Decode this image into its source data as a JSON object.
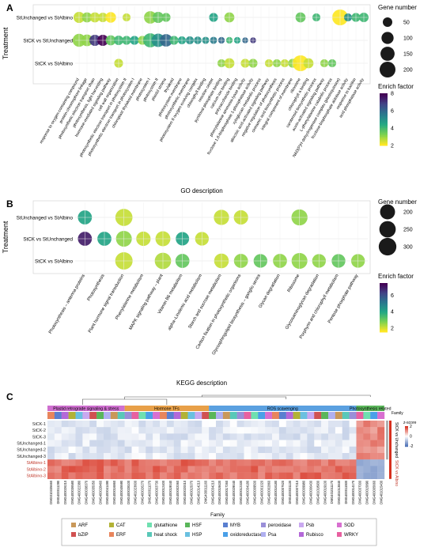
{
  "panels": {
    "A": {
      "label": "A",
      "ylabel": "Treatment",
      "xlabel": "GO description",
      "legend_size_title": "Gene number",
      "legend_color_title": "Enrich factor"
    },
    "B": {
      "label": "B",
      "ylabel": "Treatment",
      "xlabel": "KEGG description",
      "legend_size_title": "Gene number",
      "legend_color_title": "Enrich factor"
    },
    "C": {
      "label": "C",
      "family_label": "Family",
      "zscore_label": "z-score",
      "legend_title": "Family"
    }
  },
  "chart_data": [
    {
      "type": "scatter",
      "panel": "A",
      "title": "",
      "xlabel": "GO description",
      "ylabel": "Treatment",
      "rows": [
        "StUnchanged vs StAlbino",
        "StCK vs StUnchanged",
        "StCK vs StAlbino"
      ],
      "categories": [
        "response to oxygen-containing compound",
        "protein-chromophore linkage",
        "photosynthetic electron transport chain",
        "photosynthesis, light harvesting",
        "hormone-mediated signaling pathway",
        "cell wall organization",
        "photosynthetic electron transport in photosystem II",
        "photosynthetic electron transport in photosystem I",
        "chloroplast thylakoid membrane",
        "photosystem I",
        "photosystem II",
        "plastid stroma",
        "thylakoid",
        "photosystem membrane",
        "photosynthetic membrane",
        "photosystem II oxygen evolving complex",
        "chlorophyll binding",
        "reaction center",
        "pyridoxal phosphate binding",
        "calcium ion binding",
        "polysaccharide binding",
        "phenylalanine ammonia-lyase activity",
        "fructose 1,6-bisphosphate 1-phosphatase activity",
        "xyloglucan metabolic process",
        "abscisic acid-activated signaling pathway",
        "negative regulation of photosynthesis",
        "cinnamic acid biosynthetic process",
        "integral component of membrane",
        "ribosome",
        "chlorophyll a binding",
        "carotenoid biosynthetic process",
        "auxin-activated signaling pathway",
        "L-phenylalanine catabolic process",
        "NAD(P)H dehydrogenase complex (plastoquinone)",
        "fructose-bisphosphate aldolase activity",
        "response to karrikin",
        "acid phosphatase activity"
      ],
      "series": [
        {
          "name": "StUnchanged vs StAlbino",
          "points": [
            {
              "x": 1,
              "gene_number": 80,
              "enrich_factor": 2.5
            },
            {
              "x": 2,
              "gene_number": 60,
              "enrich_factor": 3
            },
            {
              "x": 3,
              "gene_number": 60,
              "enrich_factor": 2.5
            },
            {
              "x": 4,
              "gene_number": 50,
              "enrich_factor": 2.5
            },
            {
              "x": 5,
              "gene_number": 70,
              "enrich_factor": 2
            },
            {
              "x": 7,
              "gene_number": 30,
              "enrich_factor": 2.5
            },
            {
              "x": 10,
              "gene_number": 110,
              "enrich_factor": 3
            },
            {
              "x": 11,
              "gene_number": 80,
              "enrich_factor": 3.5
            },
            {
              "x": 12,
              "gene_number": 40,
              "enrich_factor": 3.5
            },
            {
              "x": 18,
              "gene_number": 40,
              "enrich_factor": 4.5
            },
            {
              "x": 20,
              "gene_number": 60,
              "enrich_factor": 3
            },
            {
              "x": 29,
              "gene_number": 60,
              "enrich_factor": 3.5
            },
            {
              "x": 31,
              "gene_number": 30,
              "enrich_factor": 4
            },
            {
              "x": 34,
              "gene_number": 200,
              "enrich_factor": 2
            },
            {
              "x": 35,
              "gene_number": 30,
              "enrich_factor": 5
            },
            {
              "x": 36,
              "gene_number": 40,
              "enrich_factor": 4
            },
            {
              "x": 37,
              "gene_number": 50,
              "enrich_factor": 4
            }
          ]
        },
        {
          "name": "StCK vs StUnchanged",
          "points": [
            {
              "x": 1,
              "gene_number": 120,
              "enrich_factor": 3
            },
            {
              "x": 2,
              "gene_number": 90,
              "enrich_factor": 3
            },
            {
              "x": 3,
              "gene_number": 80,
              "enrich_factor": 7
            },
            {
              "x": 4,
              "gene_number": 80,
              "enrich_factor": 8
            },
            {
              "x": 5,
              "gene_number": 60,
              "enrich_factor": 3.5
            },
            {
              "x": 6,
              "gene_number": 50,
              "enrich_factor": 4
            },
            {
              "x": 7,
              "gene_number": 40,
              "enrich_factor": 4
            },
            {
              "x": 8,
              "gene_number": 40,
              "enrich_factor": 4.5
            },
            {
              "x": 9,
              "gene_number": 40,
              "enrich_factor": 3
            },
            {
              "x": 10,
              "gene_number": 150,
              "enrich_factor": 4
            },
            {
              "x": 11,
              "gene_number": 130,
              "enrich_factor": 5
            },
            {
              "x": 12,
              "gene_number": 110,
              "enrich_factor": 6
            },
            {
              "x": 13,
              "gene_number": 40,
              "enrich_factor": 4
            },
            {
              "x": 14,
              "gene_number": 30,
              "enrich_factor": 4.5
            },
            {
              "x": 15,
              "gene_number": 30,
              "enrich_factor": 5
            },
            {
              "x": 16,
              "gene_number": 25,
              "enrich_factor": 5
            },
            {
              "x": 17,
              "gene_number": 20,
              "enrich_factor": 5
            },
            {
              "x": 18,
              "gene_number": 20,
              "enrich_factor": 5.5
            },
            {
              "x": 19,
              "gene_number": 15,
              "enrich_factor": 6
            },
            {
              "x": 20,
              "gene_number": 15,
              "enrich_factor": 4
            },
            {
              "x": 21,
              "gene_number": 15,
              "enrich_factor": 4.5
            },
            {
              "x": 22,
              "gene_number": 10,
              "enrich_factor": 6
            },
            {
              "x": 23,
              "gene_number": 10,
              "enrich_factor": 7
            }
          ]
        },
        {
          "name": "StCK vs StAlbino",
          "points": [
            {
              "x": 6,
              "gene_number": 40,
              "enrich_factor": 2.5
            },
            {
              "x": 19,
              "gene_number": 30,
              "enrich_factor": 3
            },
            {
              "x": 20,
              "gene_number": 60,
              "enrich_factor": 2.5
            },
            {
              "x": 22,
              "gene_number": 40,
              "enrich_factor": 2.5
            },
            {
              "x": 23,
              "gene_number": 40,
              "enrich_factor": 3
            },
            {
              "x": 25,
              "gene_number": 30,
              "enrich_factor": 2.5
            },
            {
              "x": 26,
              "gene_number": 30,
              "enrich_factor": 3
            },
            {
              "x": 27,
              "gene_number": 30,
              "enrich_factor": 2.5
            },
            {
              "x": 28,
              "gene_number": 40,
              "enrich_factor": 3
            },
            {
              "x": 29,
              "gene_number": 200,
              "enrich_factor": 2
            },
            {
              "x": 30,
              "gene_number": 60,
              "enrich_factor": 2.5
            },
            {
              "x": 32,
              "gene_number": 30,
              "enrich_factor": 3
            },
            {
              "x": 33,
              "gene_number": 30,
              "enrich_factor": 3.5
            }
          ]
        }
      ],
      "size_legend": [
        50,
        100,
        150,
        200
      ],
      "color_legend": {
        "min": 2,
        "max": 8,
        "ticks": [
          8,
          6,
          4,
          2
        ]
      }
    },
    {
      "type": "scatter",
      "panel": "B",
      "title": "",
      "xlabel": "KEGG description",
      "ylabel": "Treatment",
      "rows": [
        "StUnchanged vs StAlbino",
        "StCK vs StUnchanged",
        "StCK vs StAlbino"
      ],
      "categories": [
        "Photosynthesis – antenna proteins",
        "Photosynthesis",
        "Plant hormone signal transduction",
        "Phenylalanine metabolism",
        "MAPK signaling pathway – plant",
        "Vitamin B6 metabolism",
        "alpha–Linolenic acid metabolism",
        "Starch and sucrose metabolism",
        "Carbon fixation in photosynthetic organisms",
        "Glycosphingolipid biosynthesis – ganglio series",
        "Glycan degradation",
        "Ribosome",
        "Glycosaminoglycan degradation",
        "Porphyrin and chlorophyll metabolism",
        "Pentose phosphate pathway"
      ],
      "series": [
        {
          "name": "StUnchanged vs StAlbino",
          "points": [
            {
              "x": 1,
              "gene_number": 170,
              "enrich_factor": 4
            },
            {
              "x": 3,
              "gene_number": 280,
              "enrich_factor": 2
            },
            {
              "x": 8,
              "gene_number": 210,
              "enrich_factor": 2
            },
            {
              "x": 9,
              "gene_number": 180,
              "enrich_factor": 2
            },
            {
              "x": 12,
              "gene_number": 240,
              "enrich_factor": 2.5
            }
          ]
        },
        {
          "name": "StCK vs StUnchanged",
          "points": [
            {
              "x": 1,
              "gene_number": 170,
              "enrich_factor": 7
            },
            {
              "x": 2,
              "gene_number": 170,
              "enrich_factor": 4
            },
            {
              "x": 3,
              "gene_number": 230,
              "enrich_factor": 2.5
            },
            {
              "x": 4,
              "gene_number": 180,
              "enrich_factor": 2
            },
            {
              "x": 5,
              "gene_number": 200,
              "enrich_factor": 2
            },
            {
              "x": 6,
              "gene_number": 150,
              "enrich_factor": 4
            },
            {
              "x": 7,
              "gene_number": 160,
              "enrich_factor": 2
            }
          ]
        },
        {
          "name": "StCK vs StAlbino",
          "points": [
            {
              "x": 3,
              "gene_number": 290,
              "enrich_factor": 2
            },
            {
              "x": 5,
              "gene_number": 250,
              "enrich_factor": 2.2
            },
            {
              "x": 6,
              "gene_number": 170,
              "enrich_factor": 3
            },
            {
              "x": 8,
              "gene_number": 190,
              "enrich_factor": 2
            },
            {
              "x": 9,
              "gene_number": 170,
              "enrich_factor": 2.5
            },
            {
              "x": 10,
              "gene_number": 160,
              "enrich_factor": 3
            },
            {
              "x": 11,
              "gene_number": 170,
              "enrich_factor": 2.5
            },
            {
              "x": 12,
              "gene_number": 230,
              "enrich_factor": 2.5
            },
            {
              "x": 13,
              "gene_number": 160,
              "enrich_factor": 2.5
            },
            {
              "x": 14,
              "gene_number": 160,
              "enrich_factor": 3
            },
            {
              "x": 15,
              "gene_number": 160,
              "enrich_factor": 2.5
            }
          ]
        }
      ],
      "size_legend": [
        200,
        250,
        300
      ],
      "color_legend": {
        "min": 1.5,
        "max": 7.5,
        "ticks": [
          6,
          4,
          2
        ]
      }
    },
    {
      "type": "heatmap",
      "panel": "C",
      "rows": [
        "StCK-1",
        "StCK-2",
        "StCK-3",
        "StUnchanged-1",
        "StUnchanged-2",
        "StUnchanged-3",
        "StAlbino-1",
        "StAlbino-2",
        "StAlbino-3"
      ],
      "groups": [
        "Plastid retrograde signaling & stress",
        "Hormone TFs",
        "ROS scavenging",
        "Photosynthesis related"
      ],
      "side_labels": [
        "StCK vs Unchanged",
        "StCK vs Albino"
      ],
      "zscore_ticks": [
        "2",
        "0",
        "-2"
      ],
      "column_labels": [
        "DMG010335660",
        "DMG400011290",
        "DMG400026210",
        "DMG400036580",
        "DMG400022380",
        "DMG400038370",
        "DMG400035050",
        "DMG400028460",
        "DMG400041490",
        "DMG400016860",
        "DMG400045590",
        "DMG400028100",
        "DMG401023600",
        "DMG400026270",
        "DMG400011070",
        "DMG400003730",
        "DMG400012400",
        "DMG400019040",
        "DMG400002060",
        "DMG400020010",
        "DMG400015070",
        "DMG401014210",
        "DMG400011160",
        "DMG400034210",
        "DMG400019430",
        "DMG400017260",
        "DMG400029040",
        "DMG400012330",
        "DMG400034180",
        "DMG400009500",
        "DMG400001020",
        "DMG400002860",
        "DMG400016180",
        "DMG400007620",
        "DMG400031130",
        "DMG400007210",
        "DMG400009980",
        "DMG400006430",
        "DMG401018930",
        "DMG400019100",
        "DMG401011170",
        "DMG401013840",
        "DMG400011930",
        "DMG400014170",
        "DMG400037000",
        "DMG400015890",
        "DMG400005660",
        "DMG401015430"
      ],
      "family_legend": [
        "ARF",
        "bZIP",
        "CAT",
        "ERF",
        "glutathione",
        "heat shock",
        "HSF",
        "HSP",
        "MYB",
        "oxidoreductase",
        "peroxidase",
        "Psa",
        "Psb",
        "Rubisco",
        "SOD",
        "WRKY"
      ]
    }
  ],
  "colors": {
    "ef_low": "#fde725",
    "ef_mid1": "#7ad151",
    "ef_mid2": "#22a884",
    "ef_mid3": "#2a788e",
    "ef_mid4": "#414487",
    "ef_high": "#440154",
    "z_high": "#d7301f",
    "z_mid": "#ffffff",
    "z_low": "#4a6fb5",
    "group_plastid": "#cf6fd0",
    "group_hormone": "#e8a048",
    "group_ros": "#5aa0e0",
    "group_photo": "#5cb85c",
    "family": {
      "ARF": "#c9985a",
      "bZIP": "#d05151",
      "CAT": "#b2b236",
      "ERF": "#e8855c",
      "glutathione": "#6fe0b0",
      "heat shock": "#59c8b8",
      "HSF": "#5ab65a",
      "HSP": "#6ac0e0",
      "MYB": "#5a7fd0",
      "oxidoreductase": "#4aa0e8",
      "peroxidase": "#9a8fd8",
      "Psa": "#b0b0f0",
      "Psb": "#c9a8f0",
      "Rubisco": "#b468d8",
      "SOD": "#d86fd0",
      "WRKY": "#e860a0"
    }
  }
}
